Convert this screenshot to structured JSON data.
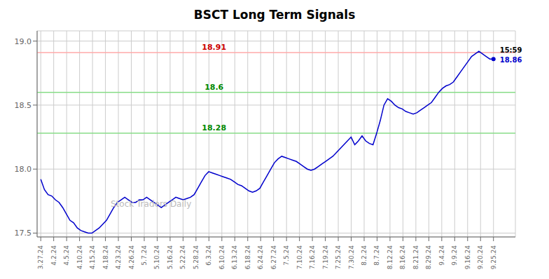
{
  "chart_data": {
    "type": "line",
    "title": "BSCT Long Term Signals",
    "color": "#0000cc",
    "grid": true,
    "x": [
      0,
      1,
      2,
      3,
      4,
      5,
      6,
      7,
      8,
      9,
      10,
      11,
      12,
      13,
      14,
      15,
      16,
      17,
      18,
      19,
      20,
      21,
      22,
      23,
      24,
      25,
      26,
      27,
      28,
      29,
      30,
      31,
      32,
      33,
      34,
      35,
      36,
      37,
      38,
      39,
      40,
      41,
      42,
      43,
      44,
      45,
      46,
      47,
      48,
      49,
      50,
      51,
      52,
      53,
      54,
      55,
      56,
      57,
      58,
      59,
      60,
      61,
      62,
      63,
      64,
      65,
      66,
      67,
      68,
      69,
      70,
      71,
      72,
      73,
      74,
      75,
      76,
      77,
      78,
      79,
      80,
      81,
      82,
      83,
      84,
      85,
      86,
      87,
      88,
      89,
      90,
      91,
      92,
      93,
      94,
      95,
      96,
      97,
      98,
      99,
      100,
      101,
      102,
      103,
      104,
      105,
      106,
      107,
      108,
      109,
      110,
      111,
      112,
      113,
      114,
      115,
      116,
      117,
      118,
      119,
      120,
      121,
      122,
      123,
      124
    ],
    "values": [
      17.92,
      17.84,
      17.8,
      17.79,
      17.76,
      17.74,
      17.7,
      17.65,
      17.6,
      17.58,
      17.54,
      17.52,
      17.51,
      17.5,
      17.5,
      17.52,
      17.54,
      17.57,
      17.6,
      17.65,
      17.7,
      17.74,
      17.76,
      17.78,
      17.76,
      17.74,
      17.74,
      17.76,
      17.76,
      17.78,
      17.76,
      17.74,
      17.72,
      17.7,
      17.72,
      17.74,
      17.76,
      17.78,
      17.77,
      17.76,
      17.77,
      17.78,
      17.8,
      17.85,
      17.9,
      17.95,
      17.98,
      17.97,
      17.96,
      17.95,
      17.94,
      17.93,
      17.92,
      17.9,
      17.88,
      17.87,
      17.85,
      17.83,
      17.82,
      17.83,
      17.85,
      17.9,
      17.95,
      18.0,
      18.05,
      18.08,
      18.1,
      18.09,
      18.08,
      18.07,
      18.06,
      18.04,
      18.02,
      18.0,
      17.99,
      18.0,
      18.02,
      18.04,
      18.06,
      18.08,
      18.1,
      18.13,
      18.16,
      18.19,
      18.22,
      18.25,
      18.19,
      18.22,
      18.26,
      18.22,
      18.2,
      18.19,
      18.28,
      18.38,
      18.5,
      18.55,
      18.53,
      18.5,
      18.48,
      18.47,
      18.45,
      18.44,
      18.43,
      18.44,
      18.46,
      18.48,
      18.5,
      18.52,
      18.56,
      18.6,
      18.63,
      18.65,
      18.66,
      18.68,
      18.72,
      18.76,
      18.8,
      18.84,
      18.88,
      18.9,
      18.92,
      18.9,
      18.88,
      18.86,
      18.86
    ],
    "xlim": [
      -1,
      130
    ],
    "xticks": [
      {
        "value": 0,
        "label": "3.27.24"
      },
      {
        "value": 3.5428571428571427,
        "label": "4.2.24"
      },
      {
        "value": 7.085714285714285,
        "label": "4.5.24"
      },
      {
        "value": 10.628571428571428,
        "label": "4.10.24"
      },
      {
        "value": 14.17142857142857,
        "label": "4.15.24"
      },
      {
        "value": 17.714285714285715,
        "label": "4.18.24"
      },
      {
        "value": 21.257142857142856,
        "label": "4.23.24"
      },
      {
        "value": 24.8,
        "label": "4.26.24"
      },
      {
        "value": 28.342857142857145,
        "label": "5.7.24"
      },
      {
        "value": 31.885714285714286,
        "label": "5.10.24"
      },
      {
        "value": 35.42857142857143,
        "label": "5.16.24"
      },
      {
        "value": 38.97142857142857,
        "label": "5.22.24"
      },
      {
        "value": 42.51428571428571,
        "label": "5.28.24"
      },
      {
        "value": 46.05714285714286,
        "label": "6.3.24"
      },
      {
        "value": 49.6,
        "label": "6.10.24"
      },
      {
        "value": 53.142857142857146,
        "label": "6.13.24"
      },
      {
        "value": 56.68571428571428,
        "label": "6.18.24"
      },
      {
        "value": 60.22857142857143,
        "label": "6.24.24"
      },
      {
        "value": 63.77142857142857,
        "label": "6.27.24"
      },
      {
        "value": 67.31428571428572,
        "label": "7.5.24"
      },
      {
        "value": 70.85714285714286,
        "label": "7.10.24"
      },
      {
        "value": 74.4,
        "label": "7.16.24"
      },
      {
        "value": 77.94285714285714,
        "label": "7.19.24"
      },
      {
        "value": 81.48571428571428,
        "label": "7.25.24"
      },
      {
        "value": 85.02857142857142,
        "label": "7.30.24"
      },
      {
        "value": 88.57142857142857,
        "label": "8.2.24"
      },
      {
        "value": 92.11428571428571,
        "label": "8.7.24"
      },
      {
        "value": 95.65714285714286,
        "label": "8.12.24"
      },
      {
        "value": 99.2,
        "label": "8.16.24"
      },
      {
        "value": 102.74285714285715,
        "label": "8.21.24"
      },
      {
        "value": 106.28571428571429,
        "label": "8.29.24"
      },
      {
        "value": 109.82857142857142,
        "label": "9.4.24"
      },
      {
        "value": 113.37142857142857,
        "label": "9.9.24"
      },
      {
        "value": 116.91428571428571,
        "label": "9.16.24"
      },
      {
        "value": 120.45714285714286,
        "label": "9.20.24"
      },
      {
        "value": 124,
        "label": "9.25.24"
      }
    ],
    "ylim": [
      17.47,
      19.08
    ],
    "yticks": [
      17.5,
      {
        "value": 18.0,
        "label": "18.0"
      },
      18.5,
      {
        "value": 19.0,
        "label": "19.0"
      }
    ],
    "reference_lines": [
      {
        "y": 18.91,
        "label": "18.91",
        "color": "#ffaaaa",
        "label_color": "#cc0000"
      },
      {
        "y": 18.6,
        "label": "18.6",
        "color": "#88dd88",
        "label_color": "#008800"
      },
      {
        "y": 18.28,
        "label": "18.28",
        "color": "#88dd88",
        "label_color": "#008800"
      }
    ],
    "annotations": [
      {
        "text": "15:59",
        "color": "#000000"
      },
      {
        "text": "18.86",
        "color": "#0000cc"
      }
    ],
    "watermark": {
      "text": "Stock Traders Daily",
      "color": "#bbbbbb"
    }
  }
}
